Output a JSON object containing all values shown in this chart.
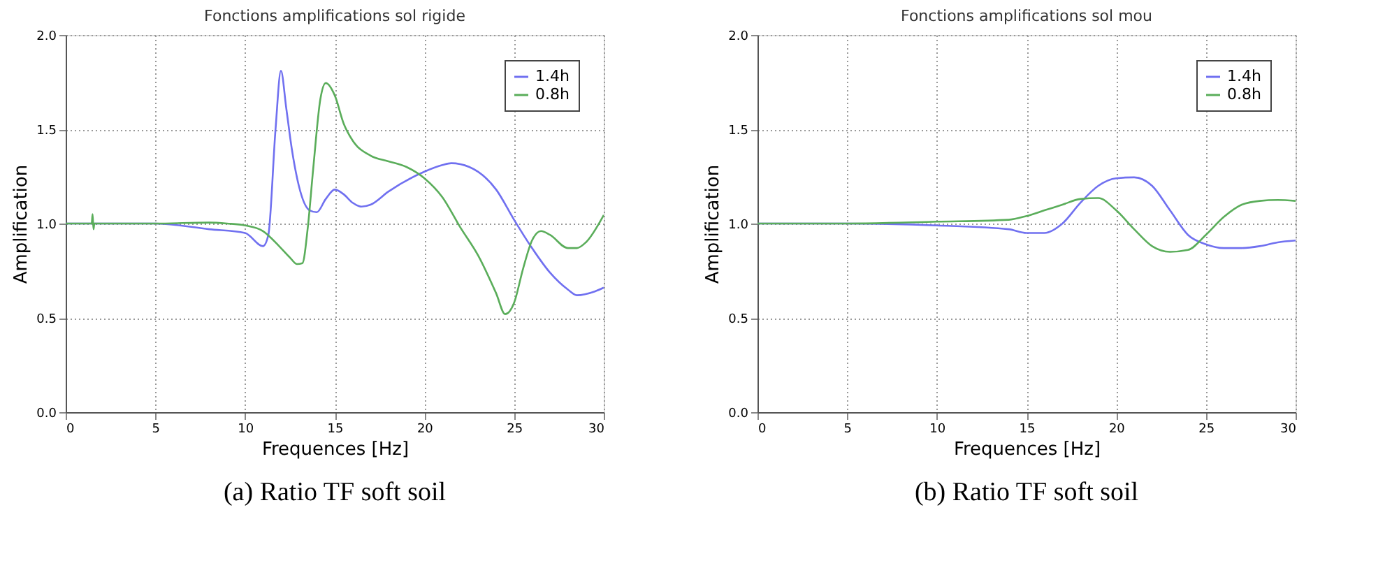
{
  "chart_data": [
    {
      "type": "line",
      "title": "Fonctions amplifications sol rigide",
      "xlabel": "Frequences [Hz]",
      "ylabel": "Amplification",
      "xlim": [
        0,
        30
      ],
      "xticks": [
        0,
        5,
        10,
        15,
        20,
        25,
        30
      ],
      "ylim": [
        0,
        2
      ],
      "yticks": [
        {
          "value": 0,
          "label": "0.0"
        },
        {
          "value": 0.5,
          "label": "0.5"
        },
        {
          "value": 1,
          "label": "1.0"
        },
        {
          "value": 1.5,
          "label": "1.5"
        },
        {
          "value": 2,
          "label": "2.0"
        }
      ],
      "grid": true,
      "legend": "top right",
      "line_style": "solid",
      "annotations": [
        "(a) Ratio TF soft soil"
      ],
      "series": [
        {
          "name": "1.4h",
          "color": "#7070f0",
          "x": [
            0,
            5,
            8,
            10,
            11,
            11.3,
            11.7,
            12,
            12.3,
            12.6,
            13,
            13.6,
            14,
            14.5,
            15,
            15.5,
            16,
            16.5,
            17,
            18,
            20,
            21,
            21.5,
            22.5,
            24,
            25,
            26,
            27,
            28,
            28.5,
            29.5,
            30
          ],
          "values": [
            1.0,
            1.0,
            0.97,
            0.95,
            0.88,
            0.94,
            1.5,
            1.81,
            1.61,
            1.4,
            1.2,
            1.07,
            1.06,
            1.13,
            1.18,
            1.155,
            1.11,
            1.09,
            1.1,
            1.17,
            1.275,
            1.31,
            1.32,
            1.3,
            1.18,
            1.02,
            0.87,
            0.74,
            0.65,
            0.62,
            0.64,
            0.66
          ]
        },
        {
          "name": "0.8h",
          "color": "#5aad5a",
          "x": [
            0,
            1.45,
            1.5,
            1.55,
            1.6,
            5,
            8,
            9,
            10,
            11,
            12,
            12.5,
            12.9,
            13.2,
            13.5,
            13.8,
            14.2,
            14.5,
            15,
            15.5,
            16,
            17,
            18,
            19,
            20,
            21,
            22,
            23,
            24,
            24.5,
            25,
            25.5,
            26,
            26.5,
            27,
            28,
            28.5,
            29,
            30
          ],
          "values": [
            1.0,
            1.0,
            1.05,
            0.97,
            1.0,
            1.0,
            1.005,
            1.0,
            0.99,
            0.96,
            0.87,
            0.82,
            0.785,
            0.79,
            0.98,
            1.29,
            1.66,
            1.745,
            1.68,
            1.53,
            1.44,
            1.36,
            1.33,
            1.3,
            1.24,
            1.14,
            0.98,
            0.83,
            0.63,
            0.52,
            0.58,
            0.76,
            0.91,
            0.96,
            0.94,
            0.87,
            0.87,
            0.9,
            1.045
          ]
        }
      ]
    },
    {
      "type": "line",
      "title": "Fonctions amplifications sol mou",
      "xlabel": "Frequences [Hz]",
      "ylabel": "Amplification",
      "xlim": [
        0,
        30
      ],
      "xticks": [
        0,
        5,
        10,
        15,
        20,
        25,
        30
      ],
      "ylim": [
        0,
        2
      ],
      "yticks": [
        {
          "value": 0,
          "label": "0.0"
        },
        {
          "value": 0.5,
          "label": "0.5"
        },
        {
          "value": 1,
          "label": "1.0"
        },
        {
          "value": 1.5,
          "label": "1.5"
        },
        {
          "value": 2,
          "label": "2.0"
        }
      ],
      "grid": true,
      "legend": "top right",
      "line_style": "solid",
      "annotations": [
        "(b) Ratio TF soft soil"
      ],
      "series": [
        {
          "name": "1.4h",
          "color": "#7070f0",
          "x": [
            0,
            5,
            10,
            14,
            15,
            16,
            17,
            18,
            19,
            20,
            21,
            22,
            23,
            24,
            25,
            26,
            27,
            28,
            29,
            30
          ],
          "values": [
            1.0,
            1.0,
            0.99,
            0.97,
            0.95,
            0.95,
            1.0,
            1.11,
            1.2,
            1.24,
            1.245,
            1.2,
            1.07,
            0.94,
            0.89,
            0.87,
            0.87,
            0.88,
            0.9,
            0.91
          ]
        },
        {
          "name": "0.8h",
          "color": "#5aad5a",
          "x": [
            0,
            5,
            10,
            14,
            15,
            16,
            17,
            18,
            19,
            20,
            21,
            22,
            23,
            24,
            25,
            26,
            27,
            28,
            29,
            30
          ],
          "values": [
            1.0,
            1.0,
            1.01,
            1.02,
            1.04,
            1.07,
            1.1,
            1.13,
            1.135,
            1.07,
            0.97,
            0.88,
            0.85,
            0.86,
            0.94,
            1.035,
            1.1,
            1.12,
            1.125,
            1.12
          ]
        }
      ]
    }
  ]
}
